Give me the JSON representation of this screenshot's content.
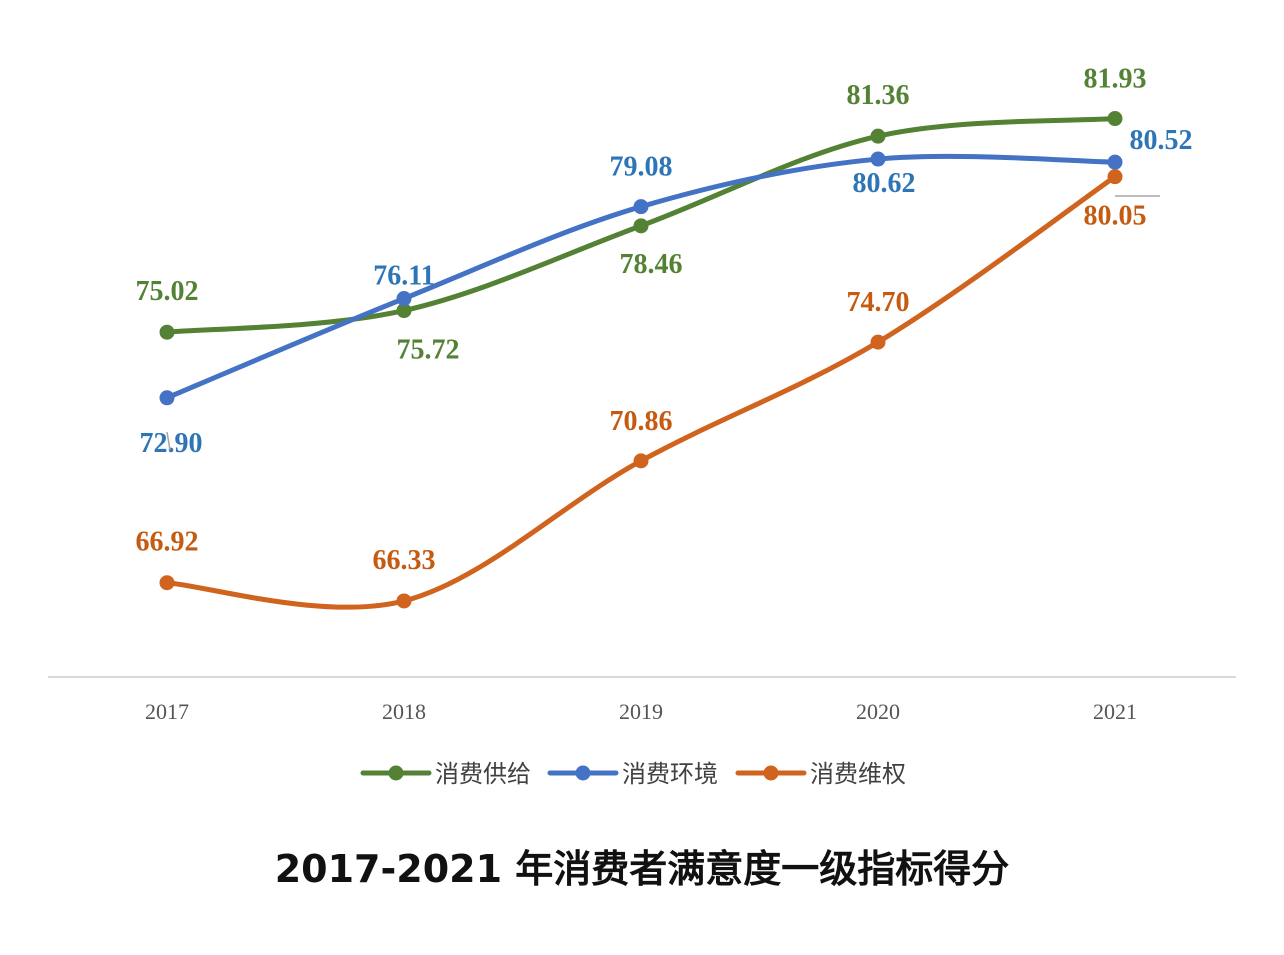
{
  "caption": "2017-2021 年消费者满意度一级指标得分",
  "chart_data": {
    "type": "line",
    "categories": [
      "2017",
      "2018",
      "2019",
      "2020",
      "2021"
    ],
    "series": [
      {
        "name": "消费供给",
        "color": "#548235",
        "label_color": "#548235",
        "values": [
          75.02,
          75.72,
          78.46,
          81.36,
          81.93
        ],
        "labels": [
          "75.02",
          "75.72",
          "78.46",
          "81.36",
          "81.93"
        ]
      },
      {
        "name": "消费环境",
        "color": "#4472C4",
        "label_color": "#2E75B6",
        "values": [
          72.9,
          76.11,
          79.08,
          80.62,
          80.52
        ],
        "labels": [
          "72.90",
          "76.11",
          "79.08",
          "80.62",
          "80.52"
        ]
      },
      {
        "name": "消费维权",
        "color": "#D0631D",
        "label_color": "#C55A11",
        "values": [
          66.92,
          66.33,
          70.86,
          74.7,
          80.05
        ],
        "labels": [
          "66.92",
          "66.33",
          "70.86",
          "74.70",
          "80.05"
        ]
      }
    ],
    "legend_position": "bottom",
    "smooth": true,
    "grid": false,
    "ylim": [
      64,
      83.5
    ]
  }
}
